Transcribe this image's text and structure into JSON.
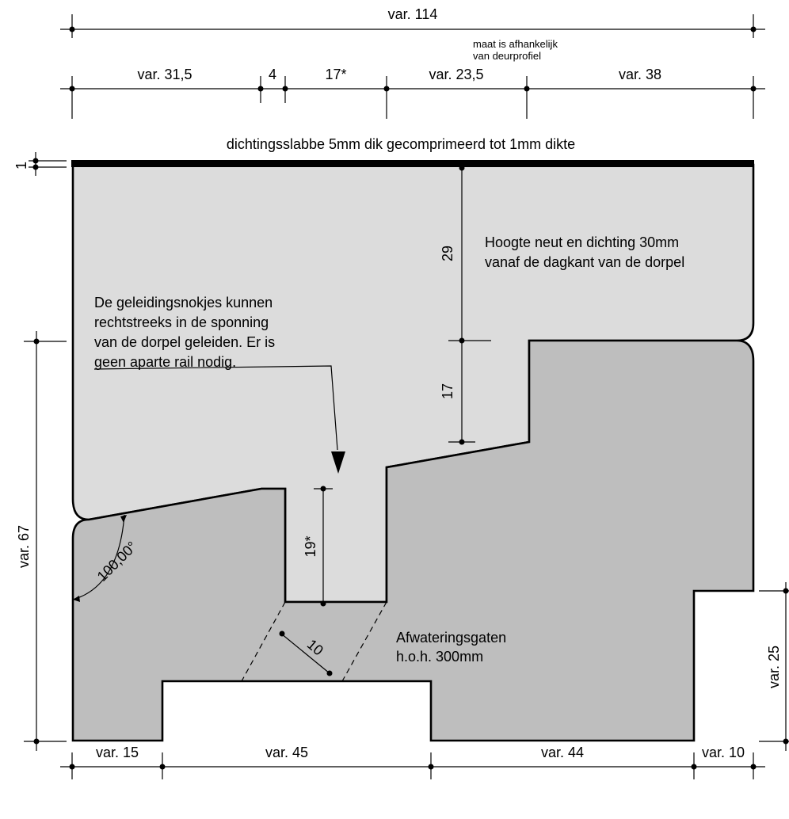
{
  "dimensions": {
    "total_width": "var. 114",
    "top_row": [
      "var. 31,5",
      "4",
      "17*",
      "var. 23,5",
      "var. 38"
    ],
    "bottom_row": [
      "var. 15",
      "var. 45",
      "var. 44",
      "var. 10"
    ],
    "seal_thickness": "1",
    "upper_height": "29",
    "step_height": "17",
    "groove_depth": "19*",
    "left_height": "var. 67",
    "right_height": "var. 25",
    "drain_width": "10",
    "angle": "100,00°"
  },
  "notes": {
    "profile_dependent": [
      "maat is afhankelijk",
      "van deurprofiel"
    ],
    "seal_strip": "dichtingsslabbe 5mm dik gecomprimeerd tot 1mm dikte",
    "nose_height": [
      "Hoogte neut en dichting 30mm",
      "vanaf de dagkant van de dorpel"
    ],
    "guide_lugs": [
      "De geleidingsnokjes kunnen",
      "rechtstreeks in de sponning",
      "van de dorpel geleiden. Er is",
      "geen aparte rail nodig."
    ],
    "drain_holes": [
      "Afwateringsgaten",
      "h.o.h. 300mm"
    ]
  },
  "colors": {
    "door_profile": "#dcdcdc",
    "sill": "#bebebe",
    "line": "#000000"
  }
}
